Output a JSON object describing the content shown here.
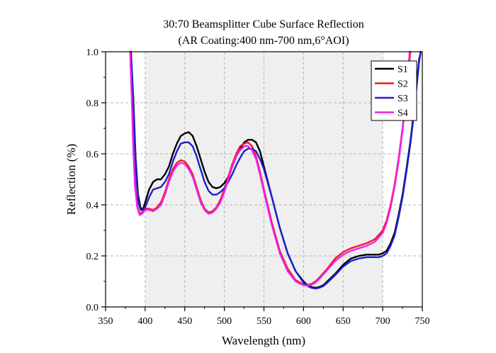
{
  "chart_data": {
    "type": "line",
    "title": "30:70 Beamsplitter Cube Surface Reflection",
    "subtitle": "(AR Coating:400 nm-700 nm,6°AOI)",
    "xlabel": "Wavelength (nm)",
    "ylabel": "Reflection (%)",
    "xlim": [
      350,
      750
    ],
    "ylim": [
      0.0,
      1.0
    ],
    "xticks": [
      "350",
      "400",
      "450",
      "500",
      "550",
      "600",
      "650",
      "700",
      "750"
    ],
    "yticks": [
      "0.0",
      "0.2",
      "0.4",
      "0.6",
      "0.8",
      "1.0"
    ],
    "grid": true,
    "shaded_band": [
      400,
      700
    ],
    "legend_position": "top-right",
    "series": [
      {
        "name": "S1",
        "color": "#000000",
        "x": [
          382,
          385,
          388,
          391,
          394,
          397,
          400,
          405,
          410,
          415,
          420,
          425,
          430,
          435,
          440,
          445,
          450,
          455,
          460,
          465,
          470,
          475,
          480,
          485,
          490,
          495,
          500,
          505,
          510,
          515,
          520,
          525,
          530,
          535,
          540,
          545,
          550,
          560,
          570,
          580,
          590,
          600,
          605,
          610,
          615,
          620,
          625,
          630,
          640,
          650,
          660,
          670,
          680,
          690,
          695,
          700,
          705,
          710,
          715,
          720,
          725,
          730,
          735,
          740,
          743,
          746,
          748
        ],
        "y": [
          1.0,
          0.82,
          0.58,
          0.44,
          0.39,
          0.38,
          0.41,
          0.46,
          0.49,
          0.5,
          0.5,
          0.52,
          0.55,
          0.6,
          0.64,
          0.67,
          0.68,
          0.685,
          0.67,
          0.63,
          0.58,
          0.53,
          0.49,
          0.47,
          0.465,
          0.47,
          0.485,
          0.51,
          0.55,
          0.59,
          0.62,
          0.645,
          0.655,
          0.655,
          0.645,
          0.61,
          0.55,
          0.43,
          0.31,
          0.21,
          0.14,
          0.1,
          0.085,
          0.078,
          0.075,
          0.078,
          0.085,
          0.1,
          0.13,
          0.165,
          0.19,
          0.2,
          0.205,
          0.205,
          0.205,
          0.21,
          0.22,
          0.25,
          0.29,
          0.36,
          0.44,
          0.54,
          0.65,
          0.78,
          0.88,
          0.97,
          1.0
        ]
      },
      {
        "name": "S2",
        "color": "#ee1c25",
        "x": [
          382,
          384,
          386,
          388,
          391,
          394,
          397,
          400,
          405,
          410,
          415,
          420,
          425,
          430,
          435,
          440,
          445,
          450,
          455,
          460,
          465,
          470,
          475,
          480,
          485,
          490,
          495,
          500,
          505,
          510,
          515,
          520,
          525,
          530,
          535,
          540,
          545,
          550,
          560,
          570,
          580,
          590,
          600,
          605,
          610,
          615,
          620,
          630,
          640,
          650,
          660,
          670,
          680,
          690,
          700,
          705,
          710,
          715,
          720,
          725,
          730,
          735
        ],
        "y": [
          1.0,
          0.8,
          0.58,
          0.45,
          0.38,
          0.365,
          0.375,
          0.385,
          0.385,
          0.38,
          0.39,
          0.41,
          0.45,
          0.5,
          0.54,
          0.565,
          0.575,
          0.57,
          0.55,
          0.52,
          0.47,
          0.42,
          0.385,
          0.37,
          0.375,
          0.39,
          0.42,
          0.46,
          0.51,
          0.56,
          0.6,
          0.63,
          0.64,
          0.645,
          0.63,
          0.59,
          0.53,
          0.46,
          0.33,
          0.22,
          0.15,
          0.105,
          0.088,
          0.087,
          0.09,
          0.1,
          0.115,
          0.15,
          0.19,
          0.215,
          0.23,
          0.24,
          0.25,
          0.265,
          0.3,
          0.34,
          0.4,
          0.48,
          0.58,
          0.7,
          0.84,
          1.0
        ]
      },
      {
        "name": "S3",
        "color": "#1f1fd1",
        "x": [
          382,
          385,
          388,
          391,
          394,
          397,
          400,
          405,
          410,
          415,
          420,
          425,
          430,
          435,
          440,
          445,
          450,
          455,
          460,
          465,
          470,
          475,
          480,
          485,
          490,
          495,
          500,
          505,
          510,
          515,
          520,
          525,
          530,
          535,
          540,
          545,
          550,
          560,
          570,
          580,
          590,
          600,
          605,
          610,
          615,
          620,
          625,
          630,
          640,
          650,
          660,
          670,
          680,
          690,
          695,
          700,
          705,
          710,
          715,
          720,
          725,
          730,
          735,
          740,
          743,
          746,
          748
        ],
        "y": [
          1.0,
          0.8,
          0.56,
          0.42,
          0.38,
          0.38,
          0.39,
          0.43,
          0.46,
          0.465,
          0.47,
          0.49,
          0.52,
          0.57,
          0.61,
          0.64,
          0.645,
          0.645,
          0.63,
          0.59,
          0.54,
          0.49,
          0.455,
          0.44,
          0.44,
          0.45,
          0.465,
          0.49,
          0.52,
          0.555,
          0.585,
          0.61,
          0.62,
          0.62,
          0.61,
          0.58,
          0.54,
          0.43,
          0.31,
          0.21,
          0.14,
          0.095,
          0.082,
          0.075,
          0.072,
          0.075,
          0.082,
          0.095,
          0.125,
          0.158,
          0.18,
          0.19,
          0.195,
          0.195,
          0.195,
          0.2,
          0.21,
          0.24,
          0.28,
          0.35,
          0.43,
          0.53,
          0.64,
          0.77,
          0.87,
          0.96,
          1.0
        ]
      },
      {
        "name": "S4",
        "color": "#ee21ee",
        "x": [
          381,
          383,
          385,
          387,
          390,
          393,
          396,
          400,
          405,
          410,
          415,
          420,
          425,
          430,
          435,
          440,
          445,
          450,
          455,
          460,
          465,
          470,
          475,
          480,
          485,
          490,
          495,
          500,
          505,
          510,
          515,
          520,
          525,
          530,
          535,
          540,
          545,
          550,
          560,
          570,
          580,
          590,
          600,
          605,
          610,
          615,
          620,
          630,
          640,
          650,
          660,
          670,
          680,
          690,
          700,
          705,
          710,
          715,
          720,
          725,
          730,
          734
        ],
        "y": [
          1.0,
          0.82,
          0.62,
          0.48,
          0.39,
          0.36,
          0.365,
          0.38,
          0.38,
          0.375,
          0.385,
          0.4,
          0.44,
          0.49,
          0.53,
          0.555,
          0.565,
          0.56,
          0.54,
          0.51,
          0.46,
          0.41,
          0.38,
          0.365,
          0.37,
          0.385,
          0.41,
          0.45,
          0.5,
          0.55,
          0.59,
          0.615,
          0.63,
          0.63,
          0.615,
          0.58,
          0.52,
          0.45,
          0.32,
          0.21,
          0.14,
          0.1,
          0.085,
          0.083,
          0.087,
          0.095,
          0.11,
          0.145,
          0.18,
          0.205,
          0.22,
          0.23,
          0.24,
          0.255,
          0.29,
          0.33,
          0.39,
          0.47,
          0.57,
          0.69,
          0.83,
          1.0
        ]
      }
    ]
  }
}
